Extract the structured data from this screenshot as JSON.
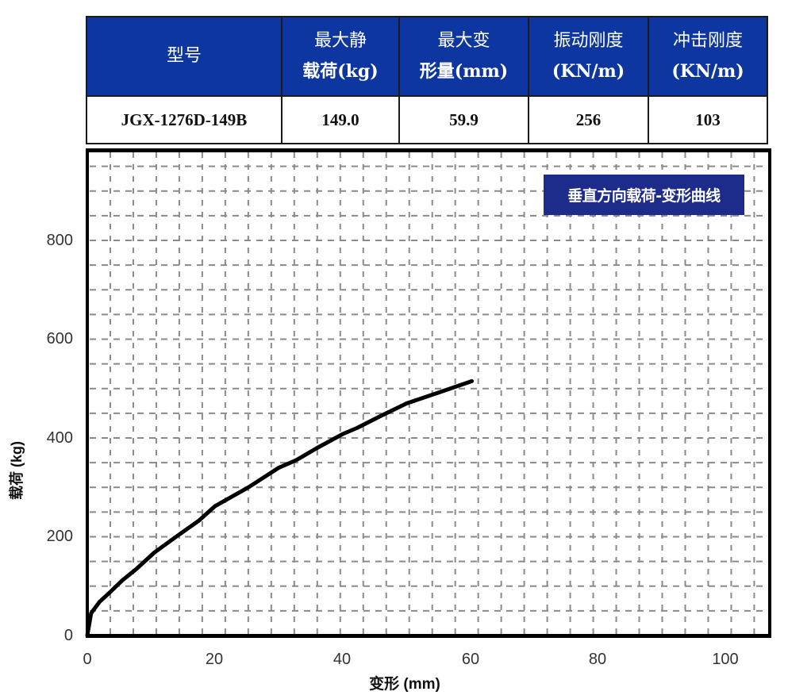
{
  "spec_table": {
    "headers": [
      {
        "line1": "型号",
        "line2": ""
      },
      {
        "line1": "最大静",
        "line2": "载荷(kg)"
      },
      {
        "line1": "最大变",
        "line2": "形量(mm)"
      },
      {
        "line1": "振动刚度",
        "line2": "(KN/m)"
      },
      {
        "line1": "冲击刚度",
        "line2": "(KN/m)"
      }
    ],
    "row": [
      "JGX-1276D-149B",
      "149.0",
      "59.9",
      "256",
      "103"
    ],
    "header_bg": "#0d36a0"
  },
  "chart_data": {
    "type": "line",
    "title": "垂直方向载荷-变形曲线",
    "xlabel": "变形 (mm)",
    "ylabel": "载荷 (kg)",
    "xlim": [
      0,
      107
    ],
    "ylim": [
      0,
      1000
    ],
    "xticks": [
      0,
      20,
      40,
      60,
      80,
      100
    ],
    "yticks": [
      0,
      200,
      400,
      600,
      800
    ],
    "grid": true,
    "legend_position": "top-right",
    "series": [
      {
        "name": "垂直方向载荷-变形曲线",
        "color": "#000000",
        "x": [
          0,
          0.6,
          1.9,
          3.5,
          5.5,
          7.7,
          10.5,
          13.9,
          17.4,
          20,
          25.2,
          30,
          32.7,
          36,
          40,
          42.2,
          46,
          50,
          55,
          60.2
        ],
        "y": [
          0,
          45,
          68,
          87,
          112,
          135,
          168,
          200,
          232,
          262,
          300,
          340,
          355,
          380,
          408,
          420,
          445,
          470,
          492,
          515
        ]
      }
    ]
  },
  "axes": {
    "x_ticks_labels": [
      "0",
      "20",
      "40",
      "60",
      "80",
      "100"
    ],
    "y_ticks_labels": [
      "0",
      "200",
      "400",
      "600",
      "800"
    ],
    "x_label": "变形 (mm)",
    "y_label": "载荷 (kg)"
  },
  "legend": {
    "label": "垂直方向载荷-变形曲线",
    "bg": "#1d2b8a"
  }
}
